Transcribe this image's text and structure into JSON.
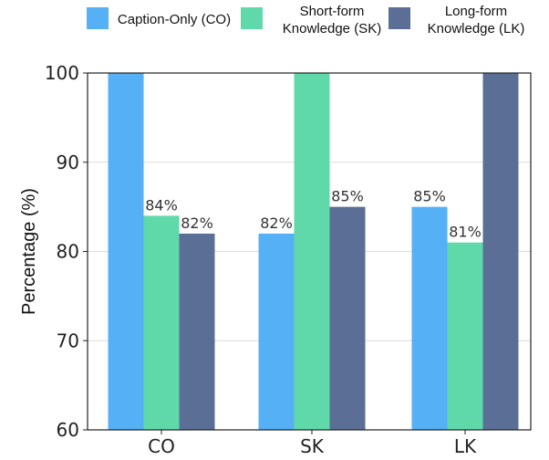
{
  "chart_data": {
    "type": "bar",
    "categories": [
      "CO",
      "SK",
      "LK"
    ],
    "series": [
      {
        "name": "Caption-Only (CO)",
        "legend_lines": [
          "Caption-Only (CO)"
        ],
        "color": "#56b0f6",
        "values": [
          100,
          82,
          85
        ],
        "labels": [
          null,
          "82%",
          "85%"
        ]
      },
      {
        "name": "Short-form Knowledge (SK)",
        "legend_lines": [
          "Short-form",
          "Knowledge (SK)"
        ],
        "color": "#5fd9aa",
        "values": [
          84,
          100,
          81
        ],
        "labels": [
          "84%",
          null,
          "81%"
        ]
      },
      {
        "name": "Long-form Knowledge (LK)",
        "legend_lines": [
          "Long-form",
          "Knowledge (LK)"
        ],
        "color": "#5b6e96",
        "values": [
          82,
          85,
          100
        ],
        "labels": [
          "82%",
          "85%",
          null
        ]
      }
    ],
    "ylabel": "Percentage (%)",
    "ylim": [
      60,
      100
    ],
    "yticks": [
      60,
      70,
      80,
      90,
      100
    ],
    "grid": true,
    "legend_position": "top"
  }
}
